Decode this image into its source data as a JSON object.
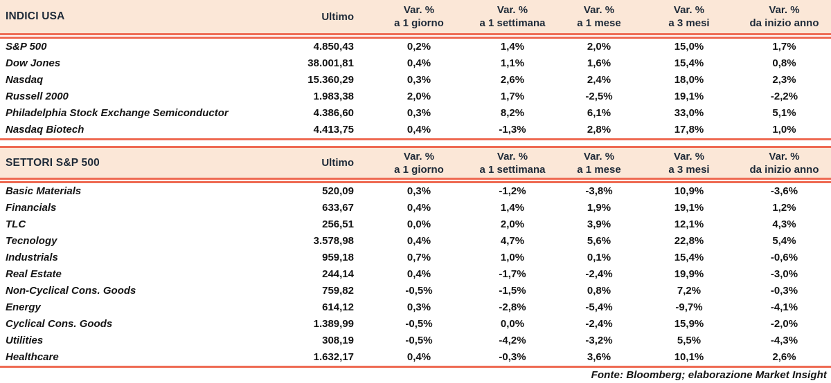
{
  "meta": {
    "source_note": "Fonte: Bloomberg; elaborazione Market Insight"
  },
  "colors": {
    "accent_line": "#ee6a52",
    "header_bg": "#fbe7d7",
    "header_text": "#1e2a38",
    "body_text": "#141414"
  },
  "columns": {
    "ultimo": "Ultimo",
    "var_label": "Var. %",
    "periods": [
      "a 1 giorno",
      "a 1 settimana",
      "a 1 mese",
      "a 3 mesi",
      "da inizio anno"
    ]
  },
  "tables": [
    {
      "title": "INDICI USA",
      "rows": [
        {
          "name": "S&P 500",
          "ultimo": "4.850,43",
          "vars": [
            "0,2%",
            "1,4%",
            "2,0%",
            "15,0%",
            "1,7%"
          ]
        },
        {
          "name": "Dow Jones",
          "ultimo": "38.001,81",
          "vars": [
            "0,4%",
            "1,1%",
            "1,6%",
            "15,4%",
            "0,8%"
          ]
        },
        {
          "name": "Nasdaq",
          "ultimo": "15.360,29",
          "vars": [
            "0,3%",
            "2,6%",
            "2,4%",
            "18,0%",
            "2,3%"
          ]
        },
        {
          "name": "Russell 2000",
          "ultimo": "1.983,38",
          "vars": [
            "2,0%",
            "1,7%",
            "-2,5%",
            "19,1%",
            "-2,2%"
          ]
        },
        {
          "name": "Philadelphia Stock Exchange Semiconductor",
          "ultimo": "4.386,60",
          "vars": [
            "0,3%",
            "8,2%",
            "6,1%",
            "33,0%",
            "5,1%"
          ]
        },
        {
          "name": "Nasdaq Biotech",
          "ultimo": "4.413,75",
          "vars": [
            "0,4%",
            "-1,3%",
            "2,8%",
            "17,8%",
            "1,0%"
          ]
        }
      ]
    },
    {
      "title": "SETTORI S&P 500",
      "rows": [
        {
          "name": "Basic Materials",
          "ultimo": "520,09",
          "vars": [
            "0,3%",
            "-1,2%",
            "-3,8%",
            "10,9%",
            "-3,6%"
          ]
        },
        {
          "name": "Financials",
          "ultimo": "633,67",
          "vars": [
            "0,4%",
            "1,4%",
            "1,9%",
            "19,1%",
            "1,2%"
          ]
        },
        {
          "name": "TLC",
          "ultimo": "256,51",
          "vars": [
            "0,0%",
            "2,0%",
            "3,9%",
            "12,1%",
            "4,3%"
          ]
        },
        {
          "name": "Tecnology",
          "ultimo": "3.578,98",
          "vars": [
            "0,4%",
            "4,7%",
            "5,6%",
            "22,8%",
            "5,4%"
          ]
        },
        {
          "name": "Industrials",
          "ultimo": "959,18",
          "vars": [
            "0,7%",
            "1,0%",
            "0,1%",
            "15,4%",
            "-0,6%"
          ]
        },
        {
          "name": "Real Estate",
          "ultimo": "244,14",
          "vars": [
            "0,4%",
            "-1,7%",
            "-2,4%",
            "19,9%",
            "-3,0%"
          ]
        },
        {
          "name": "Non-Cyclical Cons. Goods",
          "ultimo": "759,82",
          "vars": [
            "-0,5%",
            "-1,5%",
            "0,8%",
            "7,2%",
            "-0,3%"
          ]
        },
        {
          "name": "Energy",
          "ultimo": "614,12",
          "vars": [
            "0,3%",
            "-2,8%",
            "-5,4%",
            "-9,7%",
            "-4,1%"
          ]
        },
        {
          "name": "Cyclical Cons. Goods",
          "ultimo": "1.389,99",
          "vars": [
            "-0,5%",
            "0,0%",
            "-2,4%",
            "15,9%",
            "-2,0%"
          ]
        },
        {
          "name": "Utilities",
          "ultimo": "308,19",
          "vars": [
            "-0,5%",
            "-4,2%",
            "-3,2%",
            "5,5%",
            "-4,3%"
          ]
        },
        {
          "name": "Healthcare",
          "ultimo": "1.632,17",
          "vars": [
            "0,4%",
            "-0,3%",
            "3,6%",
            "10,1%",
            "2,6%"
          ]
        }
      ]
    }
  ]
}
